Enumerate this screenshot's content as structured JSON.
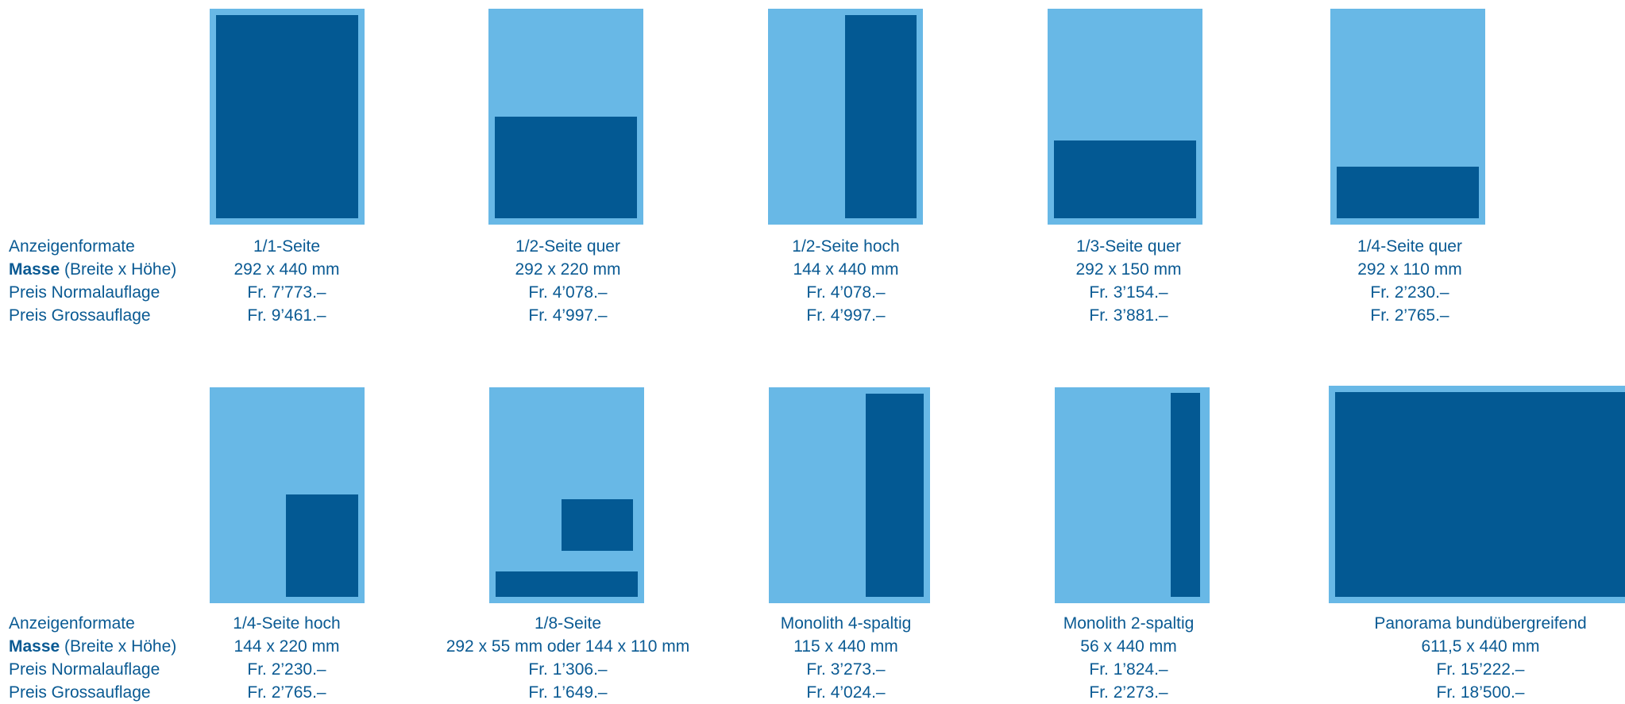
{
  "colors": {
    "page": "#68b8e6",
    "ad": "#035993",
    "text": "#0a5a93"
  },
  "legend": {
    "row1": "Anzeigenformate",
    "row2_bold": "Masse",
    "row2_rest": " (Breite x Höhe)",
    "row3": "Preis Normalauflage",
    "row4": "Preis Grossauflage"
  },
  "formats": [
    {
      "name": "1/1-Seite",
      "size": "292 x 440 mm",
      "price_normal": "Fr. 7’773.–",
      "price_large": "Fr. 9’461.–"
    },
    {
      "name": "1/2-Seite quer",
      "size": "292 x 220 mm",
      "price_normal": "Fr. 4’078.–",
      "price_large": "Fr. 4’997.–"
    },
    {
      "name": "1/2-Seite hoch",
      "size": "144 x 440 mm",
      "price_normal": "Fr. 4’078.–",
      "price_large": "Fr. 4’997.–"
    },
    {
      "name": "1/3-Seite quer",
      "size": "292 x 150 mm",
      "price_normal": "Fr. 3’154.–",
      "price_large": "Fr. 3’881.–"
    },
    {
      "name": "1/4-Seite quer",
      "size": "292 x 110 mm",
      "price_normal": "Fr. 2’230.–",
      "price_large": "Fr. 2’765.–"
    },
    {
      "name": "1/4-Seite hoch",
      "size": "144 x 220 mm",
      "price_normal": "Fr. 2’230.–",
      "price_large": "Fr. 2’765.–"
    },
    {
      "name": "1/8-Seite",
      "size": "292 x 55 mm oder 144 x 110 mm",
      "price_normal": "Fr. 1’306.–",
      "price_large": "Fr. 1’649.–"
    },
    {
      "name": "Monolith 4-spaltig",
      "size": "115 x 440 mm",
      "price_normal": "Fr. 3’273.–",
      "price_large": "Fr. 4’024.–"
    },
    {
      "name": "Monolith 2-spaltig",
      "size": "56 x 440 mm",
      "price_normal": "Fr. 1’824.–",
      "price_large": "Fr. 2’273.–"
    },
    {
      "name": "Panorama bundübergreifend",
      "size": "611,5 x 440 mm",
      "price_normal": "Fr. 15’222.–",
      "price_large": "Fr. 18’500.–"
    }
  ]
}
